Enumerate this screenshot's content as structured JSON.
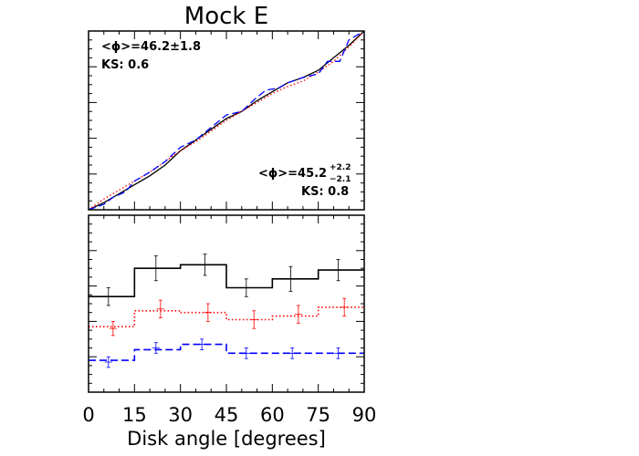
{
  "chart_data": [
    {
      "type": "line",
      "panel": "top",
      "title": "Mock E",
      "xlim": [
        0,
        90
      ],
      "ylim": [
        0,
        1
      ],
      "x_ticks": [
        0,
        15,
        30,
        45,
        60,
        75,
        90
      ],
      "annotations": {
        "upper_left": {
          "phi_label": "<ϕ>=46.2±1.8",
          "ks_label": "KS: 0.6"
        },
        "lower_right": {
          "phi_base": "<ϕ>=45.2",
          "phi_sup": "+2.2",
          "phi_sub": "−2.1",
          "ks_label": "KS: 0.8"
        }
      },
      "series": [
        {
          "style": "solid",
          "color": "#000000",
          "x": [
            0,
            5,
            10,
            15,
            20,
            25,
            30,
            35,
            40,
            45,
            50,
            55,
            60,
            65,
            70,
            75,
            80,
            85,
            90
          ],
          "y": [
            0.0,
            0.04,
            0.09,
            0.14,
            0.19,
            0.25,
            0.33,
            0.39,
            0.45,
            0.51,
            0.55,
            0.61,
            0.66,
            0.71,
            0.74,
            0.78,
            0.85,
            0.92,
            1.0
          ]
        },
        {
          "style": "dotted",
          "color": "#ff0000",
          "x": [
            0,
            5,
            10,
            15,
            20,
            25,
            30,
            35,
            40,
            45,
            50,
            55,
            60,
            65,
            70,
            75,
            80,
            85,
            90
          ],
          "y": [
            0.0,
            0.06,
            0.11,
            0.16,
            0.21,
            0.27,
            0.33,
            0.38,
            0.44,
            0.5,
            0.55,
            0.6,
            0.65,
            0.69,
            0.72,
            0.77,
            0.83,
            0.91,
            1.0
          ]
        },
        {
          "style": "dashed",
          "color": "#0000ff",
          "x": [
            0,
            5,
            8,
            12,
            15,
            20,
            25,
            30,
            35,
            40,
            45,
            50,
            55,
            58,
            62,
            65,
            70,
            75,
            78,
            82,
            85,
            90
          ],
          "y": [
            0.0,
            0.03,
            0.07,
            0.1,
            0.16,
            0.21,
            0.27,
            0.35,
            0.39,
            0.46,
            0.53,
            0.55,
            0.63,
            0.67,
            0.68,
            0.71,
            0.74,
            0.76,
            0.83,
            0.83,
            0.95,
            1.0
          ]
        }
      ]
    },
    {
      "type": "histogram",
      "panel": "bottom",
      "xlabel": "Disk angle [degrees]",
      "xlim": [
        0,
        90
      ],
      "ylim": [
        0,
        1
      ],
      "bin_edges": [
        0,
        15,
        30,
        45,
        60,
        75,
        90
      ],
      "series": [
        {
          "style": "solid",
          "color": "#000000",
          "values": [
            0.54,
            0.7,
            0.72,
            0.59,
            0.64,
            0.69
          ],
          "err_x": [
            6.5,
            22,
            38,
            51.5,
            66,
            81.5
          ],
          "err_y": [
            0.54,
            0.7,
            0.72,
            0.59,
            0.64,
            0.69
          ],
          "err": [
            0.05,
            0.07,
            0.06,
            0.05,
            0.07,
            0.06
          ]
        },
        {
          "style": "dotted",
          "color": "#ff0000",
          "values": [
            0.37,
            0.46,
            0.45,
            0.41,
            0.43,
            0.48
          ],
          "err_x": [
            8,
            23.5,
            39,
            54,
            68.5,
            83.5
          ],
          "err_y": [
            0.36,
            0.47,
            0.45,
            0.41,
            0.44,
            0.48
          ],
          "err": [
            0.04,
            0.05,
            0.05,
            0.05,
            0.05,
            0.05
          ]
        },
        {
          "style": "dashed",
          "color": "#0000ff",
          "values": [
            0.18,
            0.24,
            0.27,
            0.22,
            0.22,
            0.22
          ],
          "err_x": [
            6.5,
            22,
            37,
            51.5,
            66.5,
            81.5
          ],
          "err_y": [
            0.17,
            0.25,
            0.27,
            0.22,
            0.22,
            0.22
          ],
          "err": [
            0.03,
            0.03,
            0.03,
            0.03,
            0.03,
            0.03
          ]
        }
      ]
    }
  ]
}
